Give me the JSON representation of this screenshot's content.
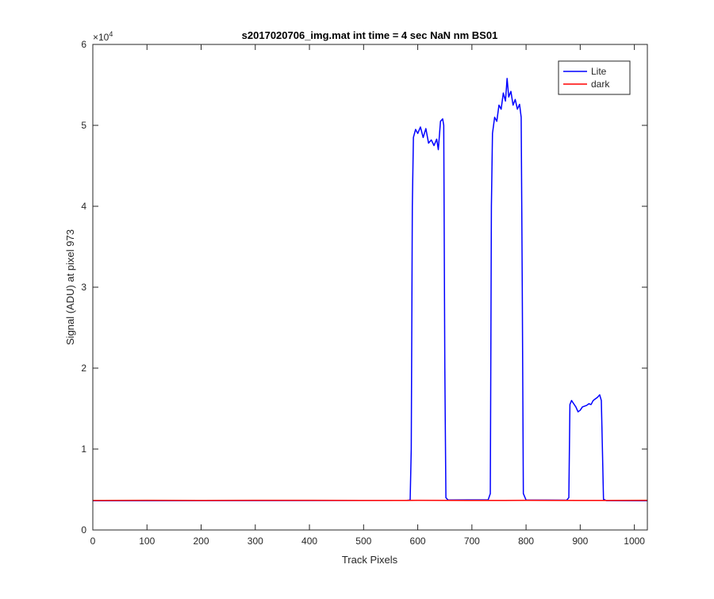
{
  "chart_data": {
    "type": "line",
    "title": "s2017020706_img.mat int time = 4 sec  NaN nm BS01",
    "xlabel": "Track Pixels",
    "ylabel": "Signal (ADU) at pixel 973",
    "y_exponent_label": "×10",
    "y_exponent_power": "4",
    "xlim": [
      0,
      1024
    ],
    "ylim": [
      0,
      60000
    ],
    "xticks": [
      0,
      100,
      200,
      300,
      400,
      500,
      600,
      700,
      800,
      900,
      1000
    ],
    "yticks": [
      0,
      10000,
      20000,
      30000,
      40000,
      50000,
      60000
    ],
    "xtick_labels": [
      "0",
      "100",
      "200",
      "300",
      "400",
      "500",
      "600",
      "700",
      "800",
      "900",
      "1000"
    ],
    "ytick_labels": [
      "0",
      "1",
      "2",
      "3",
      "4",
      "5",
      "6"
    ],
    "grid": false,
    "legend_position": "top-right",
    "series": [
      {
        "name": "Lite",
        "color": "#0000ff",
        "points": [
          [
            0,
            3620
          ],
          [
            580,
            3650
          ],
          [
            586,
            3700
          ],
          [
            588,
            10000
          ],
          [
            590,
            40000
          ],
          [
            592,
            48500
          ],
          [
            596,
            49500
          ],
          [
            600,
            49000
          ],
          [
            605,
            49800
          ],
          [
            610,
            48500
          ],
          [
            615,
            49600
          ],
          [
            620,
            47800
          ],
          [
            625,
            48200
          ],
          [
            630,
            47500
          ],
          [
            635,
            48300
          ],
          [
            638,
            47000
          ],
          [
            642,
            50500
          ],
          [
            646,
            50800
          ],
          [
            648,
            50000
          ],
          [
            650,
            20000
          ],
          [
            652,
            4000
          ],
          [
            656,
            3700
          ],
          [
            730,
            3720
          ],
          [
            734,
            4500
          ],
          [
            736,
            40000
          ],
          [
            738,
            49000
          ],
          [
            742,
            51000
          ],
          [
            746,
            50500
          ],
          [
            750,
            52500
          ],
          [
            754,
            52000
          ],
          [
            758,
            54000
          ],
          [
            762,
            53000
          ],
          [
            765,
            55800
          ],
          [
            768,
            53500
          ],
          [
            772,
            54200
          ],
          [
            776,
            52500
          ],
          [
            780,
            53200
          ],
          [
            784,
            52000
          ],
          [
            788,
            52600
          ],
          [
            791,
            51000
          ],
          [
            793,
            30000
          ],
          [
            795,
            4500
          ],
          [
            800,
            3700
          ],
          [
            875,
            3680
          ],
          [
            879,
            4000
          ],
          [
            881,
            15500
          ],
          [
            884,
            16000
          ],
          [
            888,
            15600
          ],
          [
            892,
            15200
          ],
          [
            896,
            14600
          ],
          [
            900,
            14800
          ],
          [
            904,
            15200
          ],
          [
            908,
            15300
          ],
          [
            912,
            15400
          ],
          [
            916,
            15600
          ],
          [
            920,
            15500
          ],
          [
            924,
            16000
          ],
          [
            928,
            16200
          ],
          [
            932,
            16400
          ],
          [
            936,
            16700
          ],
          [
            939,
            16000
          ],
          [
            941,
            10000
          ],
          [
            943,
            3800
          ],
          [
            948,
            3630
          ],
          [
            1024,
            3620
          ]
        ]
      },
      {
        "name": "dark",
        "color": "#ff0000",
        "points": [
          [
            0,
            3650
          ],
          [
            100,
            3660
          ],
          [
            200,
            3650
          ],
          [
            300,
            3670
          ],
          [
            400,
            3660
          ],
          [
            500,
            3650
          ],
          [
            600,
            3660
          ],
          [
            700,
            3650
          ],
          [
            800,
            3660
          ],
          [
            900,
            3650
          ],
          [
            1024,
            3660
          ]
        ]
      }
    ]
  }
}
